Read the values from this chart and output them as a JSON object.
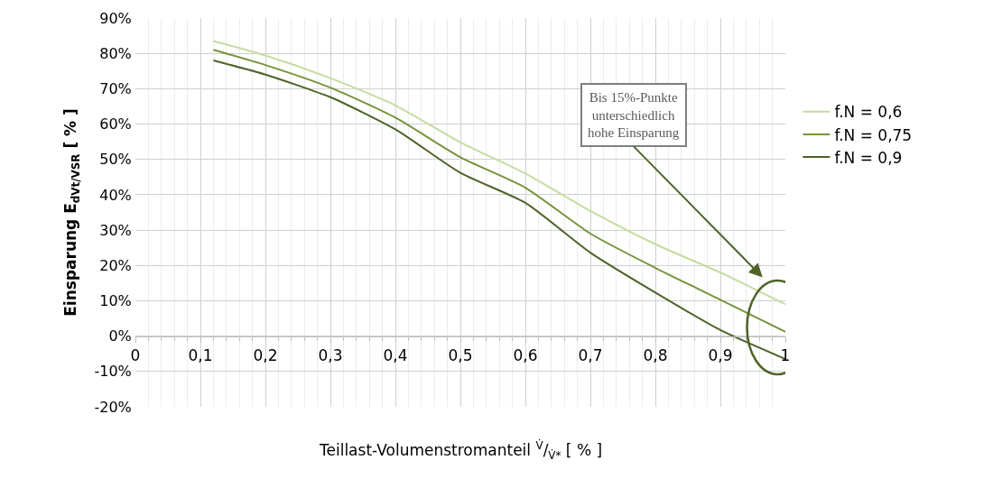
{
  "chart_data": {
    "type": "line",
    "xlabel": "Teillast-Volumenstromanteil $^{V̇}$/$_{V̇*}$ [ % ]",
    "ylabel": "Einsparung E$_{dVt/VSR}$ [ % ]",
    "x": [
      0.12,
      0.2,
      0.3,
      0.4,
      0.5,
      0.6,
      0.7,
      0.8,
      0.9,
      1.0
    ],
    "series": [
      {
        "name": "f.N = 0,6",
        "color": "#c5dca0",
        "values": [
          83.5,
          79.4,
          73,
          65.3,
          54.8,
          46,
          35.4,
          26,
          18,
          9
        ]
      },
      {
        "name": "f.N = 0,75",
        "color": "#77933c",
        "values": [
          81,
          76.7,
          70.3,
          61.8,
          50.6,
          42,
          29,
          19.3,
          10.3,
          1.2
        ]
      },
      {
        "name": "f.N = 0,9",
        "color": "#4f6228",
        "values": [
          78,
          74,
          67.6,
          58.5,
          46.2,
          37.7,
          23.6,
          12.3,
          1.7,
          -6.5
        ]
      }
    ],
    "xlim": [
      0,
      1
    ],
    "xticks": [
      {
        "value": 0,
        "label": "0"
      },
      {
        "value": 0.1,
        "label": "0,1"
      },
      {
        "value": 0.2,
        "label": "0,2"
      },
      {
        "value": 0.3,
        "label": "0,3"
      },
      {
        "value": 0.4,
        "label": "0,4"
      },
      {
        "value": 0.5,
        "label": "0,5"
      },
      {
        "value": 0.6,
        "label": "0,6"
      },
      {
        "value": 0.7,
        "label": "0,7"
      },
      {
        "value": 0.8,
        "label": "0,8"
      },
      {
        "value": 0.9,
        "label": "0,9"
      },
      {
        "value": 1,
        "label": "1"
      }
    ],
    "ylim": [
      -20,
      90
    ],
    "yticks": [
      {
        "value": -20,
        "label": "-20%"
      },
      {
        "value": -10,
        "label": "-10%"
      },
      {
        "value": 0,
        "label": "0%"
      },
      {
        "value": 10,
        "label": "10%"
      },
      {
        "value": 20,
        "label": "20%"
      },
      {
        "value": 30,
        "label": "30%"
      },
      {
        "value": 40,
        "label": "40%"
      },
      {
        "value": 50,
        "label": "50%"
      },
      {
        "value": 60,
        "label": "60%"
      },
      {
        "value": 70,
        "label": "70%"
      },
      {
        "value": 80,
        "label": "80%"
      },
      {
        "value": 90,
        "label": "90%"
      }
    ],
    "grid": true,
    "legend": "right",
    "marker": "none",
    "line_style": "solid",
    "annotations": [
      "Bis 15%-Punkte\nunterschiedlich\nhohe Einsparung"
    ]
  }
}
